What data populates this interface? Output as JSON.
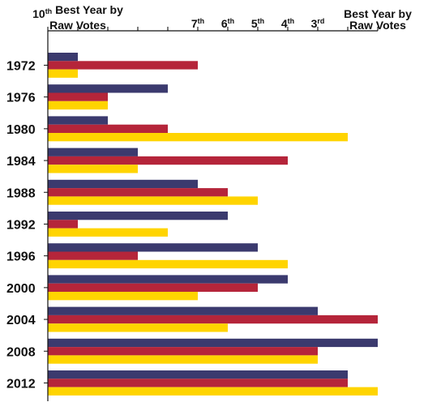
{
  "chart_data": {
    "type": "bar",
    "orientation": "horizontal",
    "categories": [
      "1972",
      "1976",
      "1980",
      "1984",
      "1988",
      "1992",
      "1996",
      "2000",
      "2004",
      "2008",
      "2012"
    ],
    "series": [
      {
        "color": "#3b3a6e",
        "values": [
          1,
          4,
          2,
          3,
          5,
          6,
          7,
          8,
          9,
          11,
          10
        ]
      },
      {
        "color": "#b5253a",
        "values": [
          5,
          2,
          4,
          8,
          6,
          1,
          3,
          7,
          11,
          9,
          10
        ]
      },
      {
        "color": "#ffd400",
        "values": [
          1,
          2,
          10,
          3,
          7,
          4,
          8,
          5,
          6,
          9,
          11
        ]
      }
    ],
    "xlim": [
      0,
      11
    ],
    "gridlines": false,
    "axis_ticks": [
      {
        "at": 1,
        "lines": [
          [
            {
              "t": "10"
            },
            {
              "t": "th",
              "sup": true
            },
            {
              "t": " Best Year by"
            }
          ],
          [
            {
              "t": "Raw Votes"
            }
          ]
        ]
      },
      {
        "at": 5,
        "lines": [
          [
            {
              "t": "7"
            },
            {
              "t": "th",
              "sup": true
            }
          ]
        ]
      },
      {
        "at": 6,
        "lines": [
          [
            {
              "t": "6"
            },
            {
              "t": "th",
              "sup": true
            }
          ]
        ]
      },
      {
        "at": 7,
        "lines": [
          [
            {
              "t": "5"
            },
            {
              "t": "th",
              "sup": true
            }
          ]
        ]
      },
      {
        "at": 8,
        "lines": [
          [
            {
              "t": "4"
            },
            {
              "t": "th",
              "sup": true
            }
          ]
        ]
      },
      {
        "at": 9,
        "lines": [
          [
            {
              "t": "3"
            },
            {
              "t": "rd",
              "sup": true
            }
          ]
        ]
      },
      {
        "at": 11,
        "lines": [
          [
            {
              "t": "Best Year by"
            }
          ],
          [
            {
              "t": "Raw Votes"
            }
          ]
        ]
      }
    ]
  }
}
